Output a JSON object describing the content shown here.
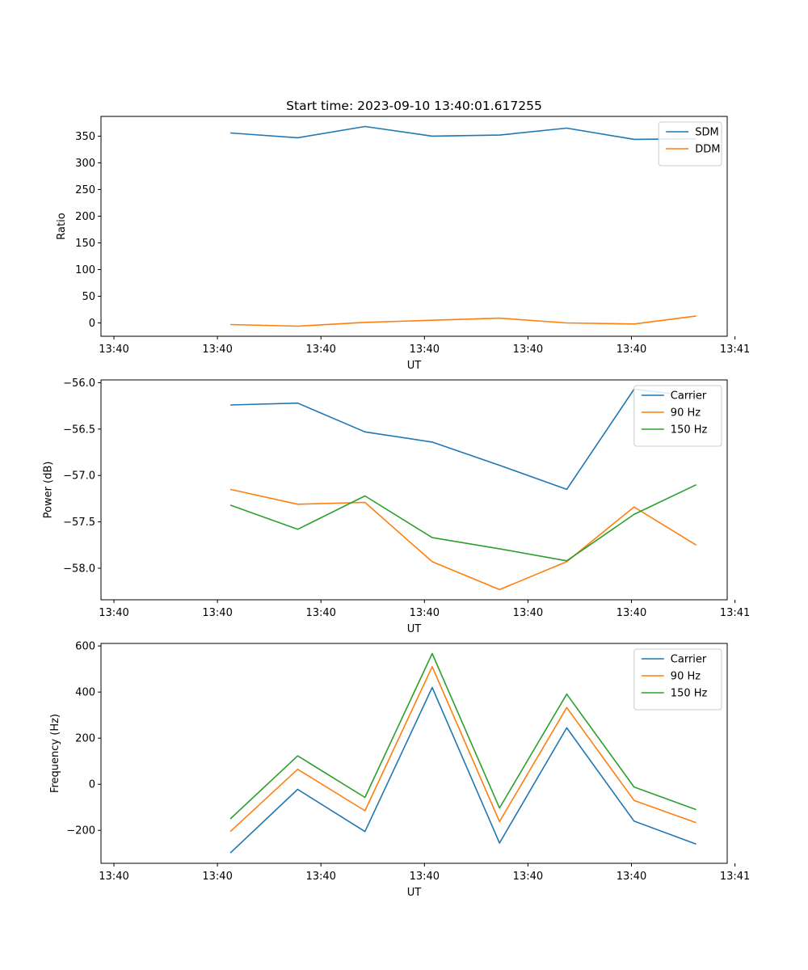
{
  "chart_data": [
    {
      "type": "line",
      "title": "Start time: 2023-09-10 13:40:01.617255",
      "xlabel": "UT",
      "ylabel": "Ratio",
      "xlim": [
        -0.15,
        1.06
      ],
      "ylim": [
        -25,
        387
      ],
      "x": [
        0.1,
        0.23,
        0.36,
        0.49,
        0.62,
        0.75,
        0.88,
        1.0
      ],
      "xticks": [
        -0.125,
        0.075,
        0.275,
        0.475,
        0.675,
        0.875,
        1.075
      ],
      "xtick_labels": [
        "13:40",
        "13:40",
        "13:40",
        "13:40",
        "13:40",
        "13:40",
        "13:41"
      ],
      "yticks": [
        0,
        50,
        100,
        150,
        200,
        250,
        300,
        350
      ],
      "ytick_labels": [
        "0",
        "50",
        "100",
        "150",
        "200",
        "250",
        "300",
        "350"
      ],
      "legend_position": "top-right",
      "series": [
        {
          "name": "SDM",
          "color": "#1f77b4",
          "values": [
            356,
            347,
            368,
            350,
            352,
            365,
            344,
            345
          ]
        },
        {
          "name": "DDM",
          "color": "#ff7f0e",
          "values": [
            -3,
            -6,
            1,
            5,
            9,
            0,
            -2,
            13
          ]
        }
      ]
    },
    {
      "type": "line",
      "title": "",
      "xlabel": "UT",
      "ylabel": "Power (dB)",
      "xlim": [
        -0.15,
        1.06
      ],
      "ylim": [
        -58.34,
        -55.97
      ],
      "x": [
        0.1,
        0.23,
        0.36,
        0.49,
        0.62,
        0.75,
        0.88,
        1.0
      ],
      "xticks": [
        -0.125,
        0.075,
        0.275,
        0.475,
        0.675,
        0.875,
        1.075
      ],
      "xtick_labels": [
        "13:40",
        "13:40",
        "13:40",
        "13:40",
        "13:40",
        "13:40",
        "13:41"
      ],
      "yticks": [
        -58.0,
        -57.5,
        -57.0,
        -56.5,
        -56.0
      ],
      "ytick_labels": [
        "−58.0",
        "−57.5",
        "−57.0",
        "−56.5",
        "−56.0"
      ],
      "legend_position": "top-right",
      "series": [
        {
          "name": "Carrier",
          "color": "#1f77b4",
          "values": [
            -56.24,
            -56.22,
            -56.53,
            -56.64,
            -56.89,
            -57.15,
            -56.07,
            -56.15
          ]
        },
        {
          "name": "90 Hz",
          "color": "#ff7f0e",
          "values": [
            -57.15,
            -57.31,
            -57.29,
            -57.93,
            -58.23,
            -57.93,
            -57.34,
            -57.75
          ]
        },
        {
          "name": "150 Hz",
          "color": "#2ca02c",
          "values": [
            -57.32,
            -57.58,
            -57.22,
            -57.67,
            -57.79,
            -57.92,
            -57.42,
            -57.1
          ]
        }
      ]
    },
    {
      "type": "line",
      "title": "",
      "xlabel": "UT",
      "ylabel": "Frequency (Hz)",
      "xlim": [
        -0.15,
        1.06
      ],
      "ylim": [
        -343,
        611
      ],
      "x": [
        0.1,
        0.23,
        0.36,
        0.49,
        0.62,
        0.75,
        0.88,
        1.0
      ],
      "xticks": [
        -0.125,
        0.075,
        0.275,
        0.475,
        0.675,
        0.875,
        1.075
      ],
      "xtick_labels": [
        "13:40",
        "13:40",
        "13:40",
        "13:40",
        "13:40",
        "13:40",
        "13:41"
      ],
      "yticks": [
        -200,
        0,
        200,
        400,
        600
      ],
      "ytick_labels": [
        "−200",
        "0",
        "200",
        "400",
        "600"
      ],
      "legend_position": "top-right",
      "series": [
        {
          "name": "Carrier",
          "color": "#1f77b4",
          "values": [
            -298,
            -22,
            -205,
            420,
            -255,
            245,
            -160,
            -260
          ]
        },
        {
          "name": "90 Hz",
          "color": "#ff7f0e",
          "values": [
            -205,
            65,
            -115,
            510,
            -162,
            333,
            -70,
            -167
          ]
        },
        {
          "name": "150 Hz",
          "color": "#2ca02c",
          "values": [
            -150,
            123,
            -57,
            567,
            -103,
            391,
            -12,
            -110
          ]
        }
      ]
    }
  ]
}
